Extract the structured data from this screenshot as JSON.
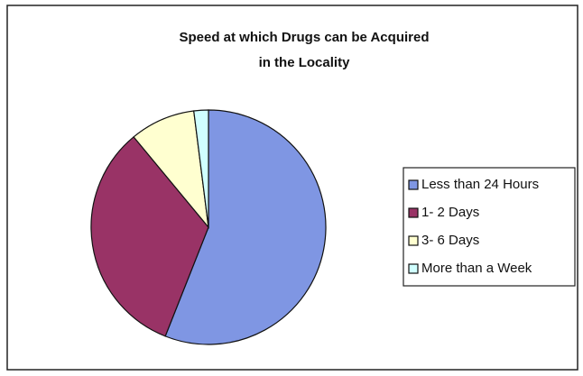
{
  "chart_data": {
    "type": "pie",
    "title": [
      "Speed at which Drugs can be Acquired",
      "in the Locality"
    ],
    "categories": [
      "Less than 24 Hours",
      "1- 2 Days",
      "3- 6 Days",
      "More than a Week"
    ],
    "values": [
      56,
      33,
      9,
      2
    ],
    "colors": [
      "#7f96e3",
      "#993366",
      "#ffffd0",
      "#d0ffff"
    ],
    "legend": "right"
  }
}
